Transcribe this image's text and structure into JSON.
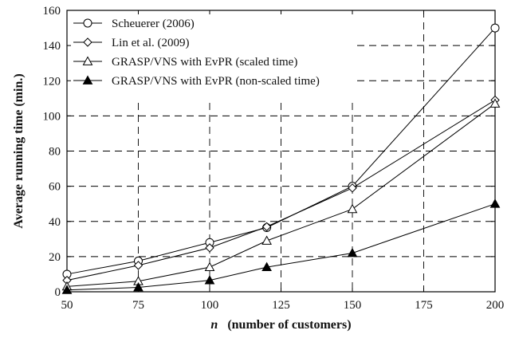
{
  "chart_data": {
    "type": "line",
    "x": [
      50,
      75,
      100,
      120,
      150,
      200
    ],
    "xticks": [
      50,
      75,
      100,
      125,
      150,
      175,
      200
    ],
    "yticks": [
      0,
      20,
      40,
      60,
      80,
      100,
      120,
      140,
      160
    ],
    "xlim": [
      50,
      200
    ],
    "ylim": [
      0,
      160
    ],
    "xlabel_italic": "n",
    "xlabel": "(number of customers)",
    "ylabel": "Average running time (min.)",
    "grid": true,
    "grid_style": "dashed",
    "legend_position": "top-left",
    "series": [
      {
        "name": "Scheuerer (2006)",
        "marker": "circle-open",
        "values": [
          10,
          17.5,
          28,
          36.5,
          60,
          150
        ]
      },
      {
        "name": "Lin et al. (2009)",
        "marker": "diamond-open",
        "values": [
          6.5,
          15,
          25,
          37,
          59,
          109
        ]
      },
      {
        "name": "GRASP/VNS with EvPR (scaled time)",
        "marker": "triangle-open",
        "values": [
          3,
          6,
          14,
          29,
          47,
          107
        ]
      },
      {
        "name": "GRASP/VNS with EvPR (non-scaled time)",
        "marker": "triangle-filled",
        "values": [
          1,
          2.5,
          6.5,
          14,
          22,
          50
        ]
      }
    ]
  }
}
